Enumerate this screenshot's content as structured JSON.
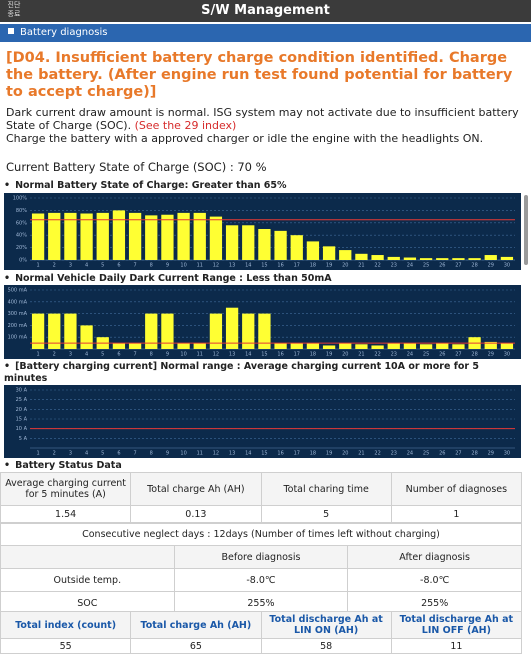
{
  "header": {
    "close_label": [
      "진단",
      "종료"
    ],
    "title": "S/W Management"
  },
  "section": {
    "title": "Battery diagnosis"
  },
  "diagnosis": {
    "heading": "[D04. Insufficient battery charge condition identified. Charge the battery. (After engine run test found potential for battery to accept charge)]",
    "text_1": "Dark current draw amount is normal. ISG system may not activate due to insufficient battery State of Charge (SOC). ",
    "link": "(See the 29 index)",
    "text_2": "Charge the battery with a approved charger or idle the engine with the headlights ON.",
    "soc": "Current Battery State of Charge (SOC) : 70 %"
  },
  "chart_data": [
    {
      "type": "bar",
      "title": "Normal Battery State of Charge: Greater than 65%",
      "categories": [
        "1",
        "2",
        "3",
        "4",
        "5",
        "6",
        "7",
        "8",
        "9",
        "10",
        "11",
        "12",
        "13",
        "14",
        "15",
        "16",
        "17",
        "18",
        "19",
        "20",
        "21",
        "22",
        "23",
        "24",
        "25",
        "26",
        "27",
        "28",
        "29",
        "30"
      ],
      "values": [
        75,
        76,
        76,
        75,
        76,
        80,
        76,
        72,
        73,
        76,
        76,
        70,
        56,
        56,
        50,
        47,
        40,
        30,
        22,
        16,
        10,
        8,
        5,
        4,
        3,
        3,
        3,
        3,
        8,
        5
      ],
      "color": "#ffff33",
      "threshold": 65,
      "threshold_color": "#e53935",
      "ylim": [
        0,
        100
      ],
      "yticks": [
        {
          "value": 0,
          "label": "0%"
        },
        {
          "value": 20,
          "label": "20%"
        },
        {
          "value": 40,
          "label": "40%"
        },
        {
          "value": 60,
          "label": "60%"
        },
        {
          "value": 80,
          "label": "80%"
        },
        {
          "value": 100,
          "label": "100%"
        }
      ],
      "grid": true
    },
    {
      "type": "bar",
      "title": "Normal Vehicle Daily Dark Current Range : Less than 50mA",
      "categories": [
        "1",
        "2",
        "3",
        "4",
        "5",
        "6",
        "7",
        "8",
        "9",
        "10",
        "11",
        "12",
        "13",
        "14",
        "15",
        "16",
        "17",
        "18",
        "19",
        "20",
        "21",
        "22",
        "23",
        "24",
        "25",
        "26",
        "27",
        "28",
        "29",
        "30"
      ],
      "values": [
        300,
        300,
        300,
        200,
        100,
        50,
        50,
        300,
        300,
        50,
        50,
        300,
        350,
        300,
        300,
        50,
        50,
        50,
        30,
        50,
        40,
        30,
        50,
        50,
        40,
        50,
        40,
        100,
        60,
        50
      ],
      "color": "#ffff33",
      "threshold": 50,
      "threshold_color": "#e53935",
      "ylim": [
        0,
        500
      ],
      "yticks": [
        {
          "value": 100,
          "label": "100 mA"
        },
        {
          "value": 200,
          "label": "200 mA"
        },
        {
          "value": 300,
          "label": "300 mA"
        },
        {
          "value": 400,
          "label": "400 mA"
        },
        {
          "value": 500,
          "label": "500 mA"
        }
      ],
      "grid": true
    },
    {
      "type": "bar",
      "title": "[Battery charging current] Normal range : Average charging current 10A or more for 5 minutes",
      "categories": [
        "1",
        "2",
        "3",
        "4",
        "5",
        "6",
        "7",
        "8",
        "9",
        "10",
        "11",
        "12",
        "13",
        "14",
        "15",
        "16",
        "17",
        "18",
        "19",
        "20",
        "21",
        "22",
        "23",
        "24",
        "25",
        "26",
        "27",
        "28",
        "29",
        "30"
      ],
      "values": [
        0,
        0,
        0,
        0,
        0,
        0,
        0,
        0,
        0,
        0,
        0,
        0,
        0,
        0,
        0,
        0,
        0,
        0,
        0,
        0,
        0,
        0,
        0,
        0,
        0,
        0,
        0,
        0,
        0,
        0
      ],
      "color": "#ffff33",
      "threshold": 10,
      "threshold_color": "#e53935",
      "ylim": [
        0,
        30
      ],
      "yticks": [
        {
          "value": 5,
          "label": "5 A"
        },
        {
          "value": 10,
          "label": "10 A"
        },
        {
          "value": 15,
          "label": "15 A"
        },
        {
          "value": 20,
          "label": "20 A"
        },
        {
          "value": 25,
          "label": "25 A"
        },
        {
          "value": 30,
          "label": "30 A"
        }
      ],
      "grid": true
    }
  ],
  "status": {
    "title": "Battery Status Data",
    "table_1": {
      "header": [
        "Average charging current for 5 minutes (A)",
        "Total charge Ah (AH)",
        "Total charing time",
        "Number of diagnoses"
      ],
      "row": [
        "1.54",
        "0.13",
        "5",
        "1"
      ]
    },
    "neglect": "Consecutive neglect days : 12days (Number of times left without charging)",
    "table_2": {
      "header": [
        "Before diagnosis",
        "After diagnosis"
      ],
      "rows": [
        [
          "Outside temp.",
          "-8.0℃",
          "-8.0℃"
        ],
        [
          "SOC",
          "255%",
          "255%"
        ]
      ]
    },
    "table_3": {
      "header": [
        "Total index (count)",
        "Total charge Ah (AH)",
        "Total discharge Ah at LIN ON (AH)",
        "Total discharge Ah at LIN OFF (AH)"
      ],
      "row": [
        "55",
        "65",
        "58",
        "11"
      ]
    }
  }
}
